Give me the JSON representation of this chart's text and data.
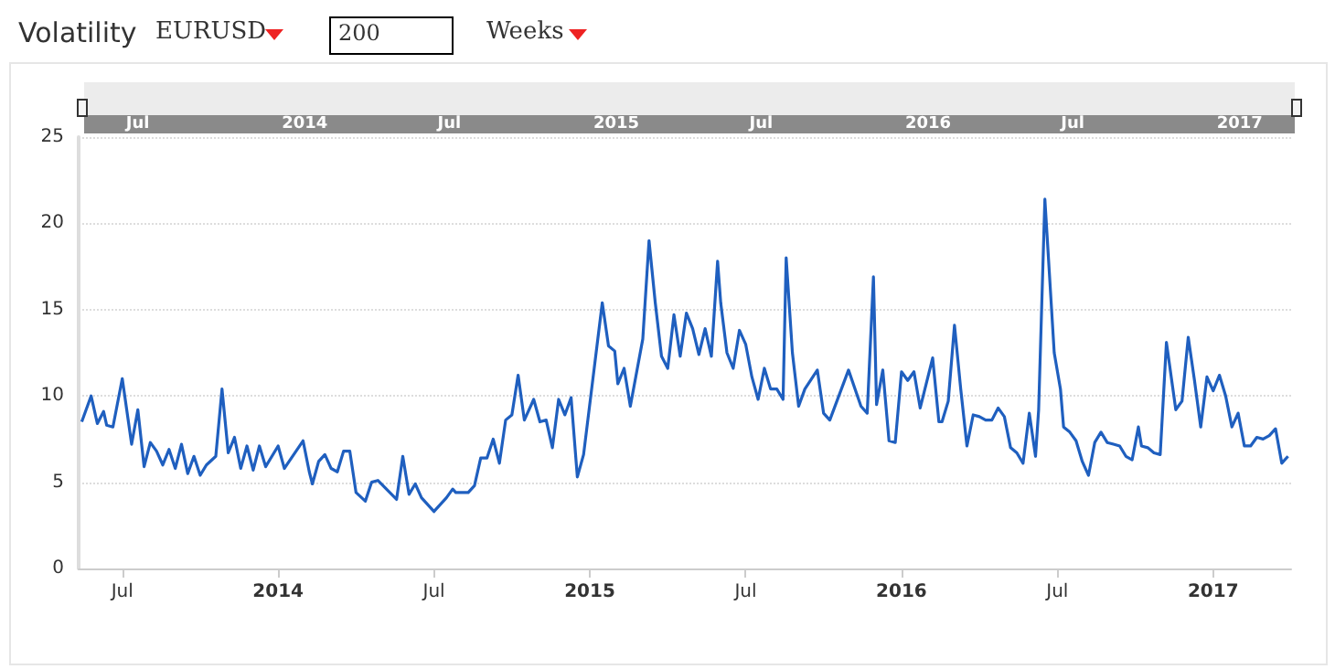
{
  "chart_data": {
    "type": "line",
    "title": "Volatility",
    "annotations": [
      "EURUSD",
      "200",
      "Weeks"
    ],
    "x": [
      2013.37,
      2013.4,
      2013.42,
      2013.44,
      2013.45,
      2013.47,
      2013.5,
      2013.53,
      2013.55,
      2013.57,
      2013.59,
      2013.61,
      2013.63,
      2013.65,
      2013.67,
      2013.69,
      2013.71,
      2013.73,
      2013.75,
      2013.77,
      2013.8,
      2013.82,
      2013.84,
      2013.86,
      2013.88,
      2013.9,
      2013.92,
      2013.94,
      2013.96,
      2014.0,
      2014.02,
      2014.08,
      2014.1,
      2014.11,
      2014.13,
      2014.15,
      2014.17,
      2014.19,
      2014.21,
      2014.23,
      2014.25,
      2014.28,
      2014.3,
      2014.32,
      2014.38,
      2014.4,
      2014.42,
      2014.44,
      2014.46,
      2014.5,
      2014.54,
      2014.56,
      2014.57,
      2014.61,
      2014.63,
      2014.65,
      2014.67,
      2014.69,
      2014.71,
      2014.73,
      2014.75,
      2014.77,
      2014.79,
      2014.82,
      2014.84,
      2014.86,
      2014.88,
      2014.9,
      2014.92,
      2014.94,
      2014.96,
      2014.98,
      2015.04,
      2015.06,
      2015.08,
      2015.09,
      2015.11,
      2015.13,
      2015.17,
      2015.19,
      2015.21,
      2015.23,
      2015.25,
      2015.27,
      2015.29,
      2015.31,
      2015.33,
      2015.35,
      2015.37,
      2015.39,
      2015.41,
      2015.42,
      2015.44,
      2015.46,
      2015.48,
      2015.5,
      2015.52,
      2015.54,
      2015.56,
      2015.58,
      2015.6,
      2015.62,
      2015.63,
      2015.65,
      2015.67,
      2015.69,
      2015.73,
      2015.75,
      2015.77,
      2015.83,
      2015.87,
      2015.89,
      2015.91,
      2015.92,
      2015.94,
      2015.96,
      2015.98,
      2016.0,
      2016.02,
      2016.04,
      2016.06,
      2016.1,
      2016.12,
      2016.13,
      2016.15,
      2016.17,
      2016.19,
      2016.21,
      2016.23,
      2016.25,
      2016.27,
      2016.29,
      2016.31,
      2016.33,
      2016.35,
      2016.37,
      2016.39,
      2016.41,
      2016.43,
      2016.44,
      2016.46,
      2016.49,
      2016.51,
      2016.52,
      2016.54,
      2016.56,
      2016.58,
      2016.6,
      2016.62,
      2016.64,
      2016.66,
      2016.68,
      2016.7,
      2016.72,
      2016.74,
      2016.76,
      2016.77,
      2016.79,
      2016.81,
      2016.83,
      2016.85,
      2016.87,
      2016.88,
      2016.9,
      2016.92,
      2016.94,
      2016.96,
      2016.98,
      2017.0,
      2017.02,
      2017.04,
      2017.06,
      2017.08,
      2017.1,
      2017.12,
      2017.14,
      2017.16,
      2017.18,
      2017.2,
      2017.22,
      2017.24
    ],
    "series": [
      {
        "color": "#1f5fbf",
        "values": [
          8.5,
          10.0,
          8.4,
          9.1,
          8.3,
          8.2,
          11.0,
          7.2,
          9.2,
          5.9,
          7.3,
          6.8,
          6.0,
          6.9,
          5.8,
          7.2,
          5.5,
          6.5,
          5.4,
          6.0,
          6.5,
          10.4,
          6.7,
          7.6,
          5.8,
          7.1,
          5.7,
          7.1,
          5.9,
          7.1,
          5.8,
          7.4,
          5.6,
          4.9,
          6.2,
          6.6,
          5.8,
          5.6,
          6.8,
          6.8,
          4.4,
          3.9,
          5.0,
          5.1,
          4.0,
          6.5,
          4.3,
          4.9,
          4.1,
          3.3,
          4.1,
          4.6,
          4.4,
          4.4,
          4.8,
          6.4,
          6.4,
          7.5,
          6.1,
          8.6,
          8.9,
          11.2,
          8.6,
          9.8,
          8.5,
          8.6,
          7.0,
          9.8,
          8.9,
          9.9,
          5.3,
          6.6,
          15.4,
          12.9,
          12.6,
          10.7,
          11.6,
          9.4,
          13.3,
          19.0,
          15.4,
          12.3,
          11.6,
          14.7,
          12.3,
          14.8,
          13.9,
          12.4,
          13.9,
          12.3,
          17.8,
          15.4,
          12.5,
          11.6,
          13.8,
          13.0,
          11.1,
          9.8,
          11.6,
          10.4,
          10.4,
          9.8,
          18.0,
          12.5,
          9.4,
          10.4,
          11.5,
          9.0,
          8.6,
          11.5,
          9.4,
          9.0,
          16.9,
          9.5,
          11.5,
          7.4,
          7.3,
          11.4,
          10.9,
          11.4,
          9.3,
          12.2,
          8.5,
          8.5,
          9.7,
          14.1,
          10.4,
          7.1,
          8.9,
          8.8,
          8.6,
          8.6,
          9.3,
          8.8,
          7.0,
          6.7,
          6.1,
          9.0,
          6.5,
          9.2,
          21.4,
          12.5,
          10.4,
          8.2,
          7.9,
          7.4,
          6.2,
          5.4,
          7.3,
          7.9,
          7.3,
          7.2,
          7.1,
          6.5,
          6.3,
          8.2,
          7.1,
          7.0,
          6.7,
          6.6,
          13.1,
          10.5,
          9.2,
          9.7,
          13.4,
          10.9,
          8.2,
          11.1,
          10.3,
          11.2,
          10.0,
          8.2,
          9.0,
          7.1,
          7.1,
          7.6,
          7.5,
          7.7,
          8.1,
          6.1,
          6.5
        ]
      }
    ],
    "xlim": [
      2013.36,
      2017.25
    ],
    "xticks": [
      {
        "value": 2013.5,
        "label": "Jul"
      },
      {
        "value": 2014,
        "label": "2014"
      },
      {
        "value": 2014.5,
        "label": "Jul"
      },
      {
        "value": 2015,
        "label": "2015"
      },
      {
        "value": 2015.5,
        "label": "Jul"
      },
      {
        "value": 2016,
        "label": "2016"
      },
      {
        "value": 2016.5,
        "label": "Jul"
      },
      {
        "value": 2017,
        "label": "2017"
      }
    ],
    "ylim": [
      0,
      25
    ],
    "yticks": [
      0,
      5,
      10,
      15,
      20,
      25
    ],
    "grid": "y",
    "marker": "none",
    "line_style": "solid"
  }
}
